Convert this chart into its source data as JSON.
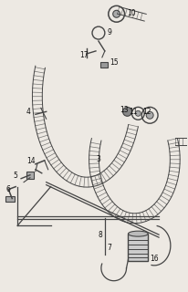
{
  "bg_color": "#ede9e3",
  "line_color": "#444444",
  "label_color": "#111111",
  "fig_width": 2.06,
  "fig_height": 3.2,
  "dpi": 100
}
